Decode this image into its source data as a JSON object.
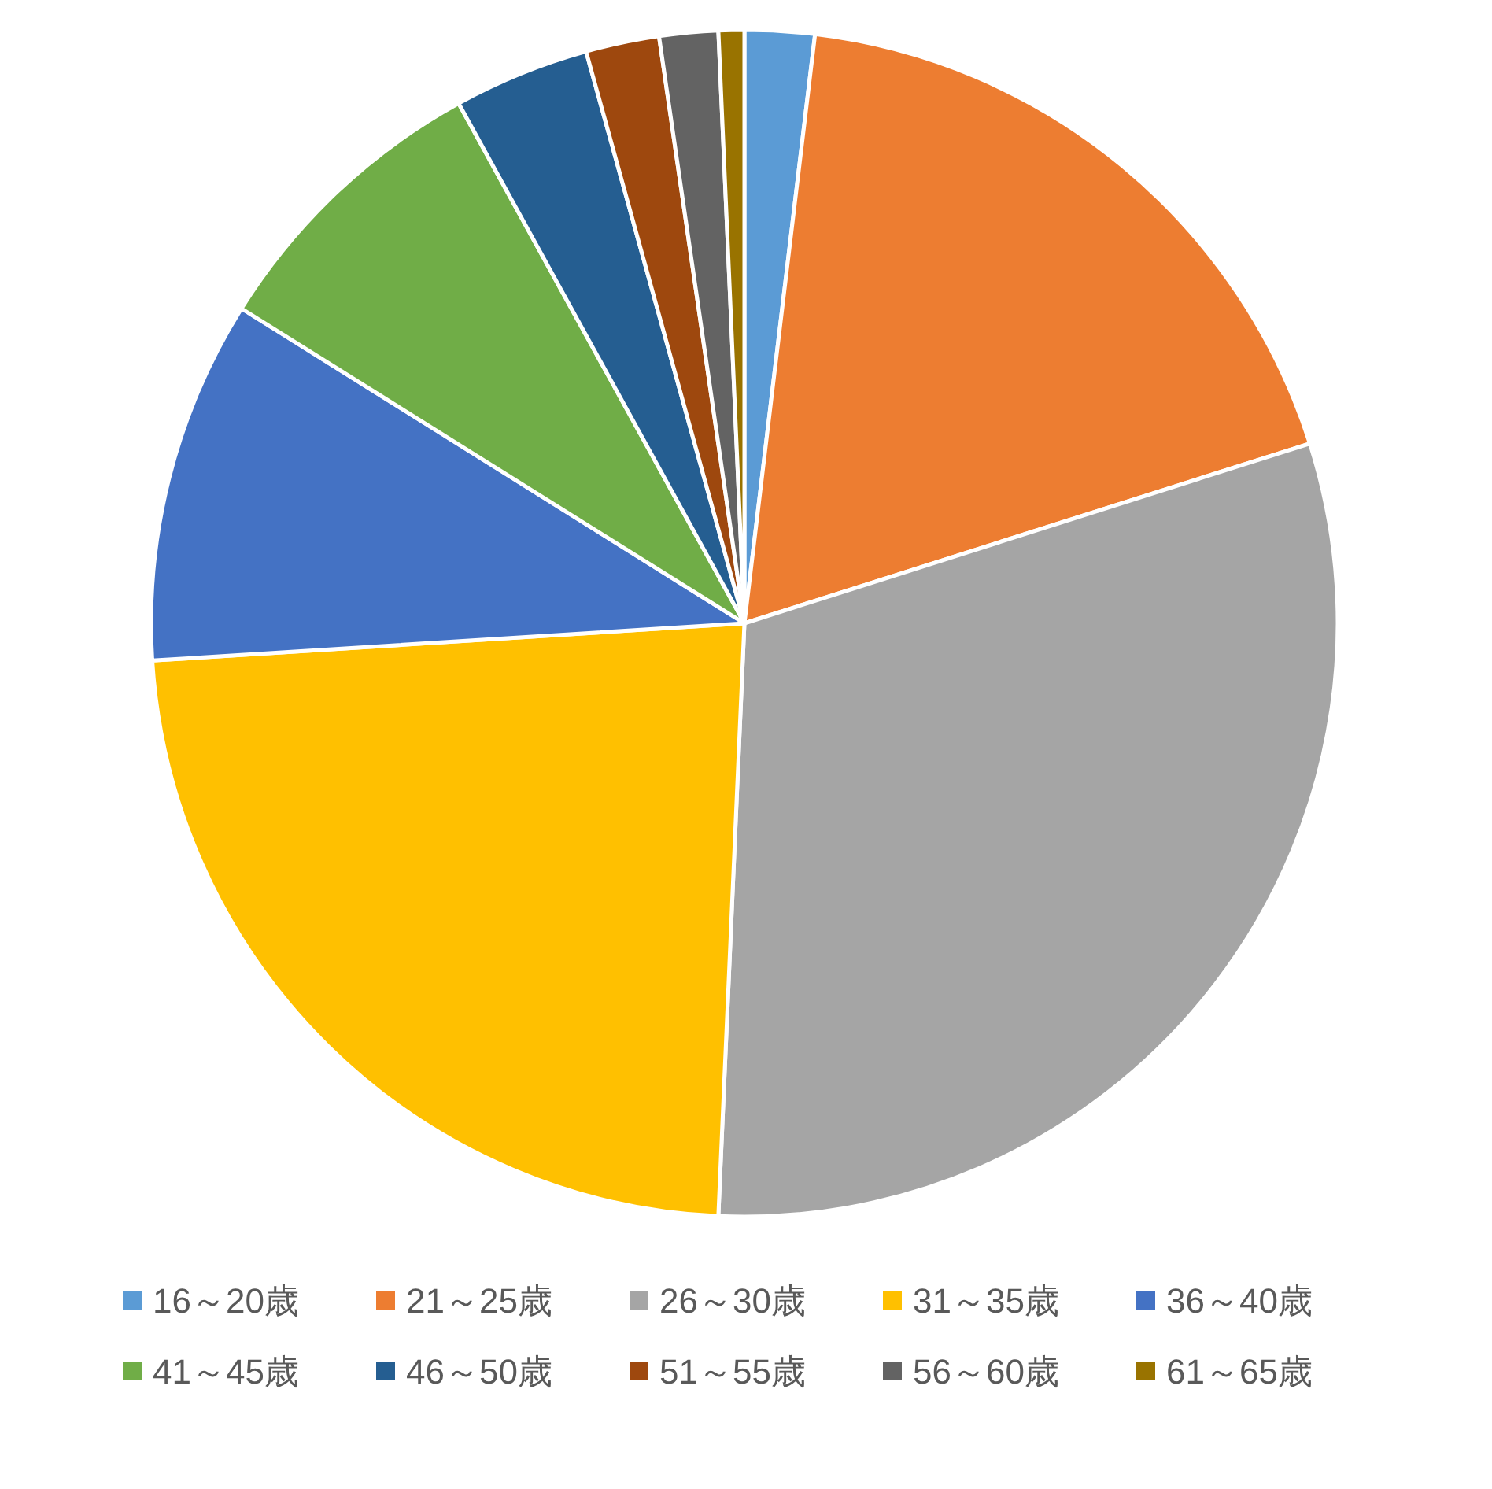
{
  "chart_data": {
    "type": "pie",
    "categories": [
      "16～20歳",
      "21～25歳",
      "26～30歳",
      "31～35歳",
      "36～40歳",
      "41～45歳",
      "46～50歳",
      "51～55歳",
      "56～60歳",
      "61～65歳"
    ],
    "values": [
      1.9,
      18.2,
      30.6,
      23.3,
      9.9,
      8.1,
      3.7,
      2.0,
      1.6,
      0.7
    ],
    "colors": [
      "#5b9bd5",
      "#ed7d31",
      "#a5a5a5",
      "#ffc000",
      "#4472c4",
      "#70ad47",
      "#255e91",
      "#9e480e",
      "#636363",
      "#997300"
    ],
    "legend": "bottom"
  }
}
